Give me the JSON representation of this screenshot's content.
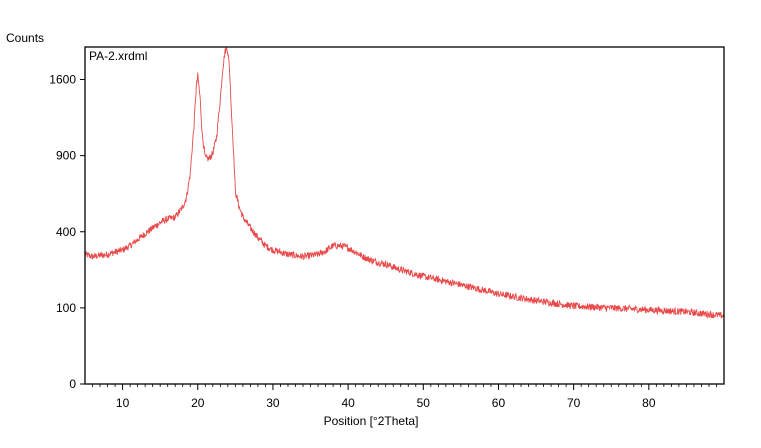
{
  "chart_data": {
    "type": "line",
    "title": "",
    "xlabel": "Position [°2Theta]",
    "ylabel": "Counts",
    "xlim": [
      5,
      90
    ],
    "y_scale": "sqrt",
    "ylim": [
      0,
      1960
    ],
    "x_ticks": [
      10,
      20,
      30,
      40,
      50,
      60,
      70,
      80
    ],
    "y_ticks": [
      0,
      100,
      400,
      900,
      1600
    ],
    "grid": false,
    "legend_position": "top-left",
    "line_color": "#e84a4a",
    "series": [
      {
        "name": "PA-2.xrdml",
        "x": [
          5,
          6,
          7,
          8,
          9,
          10,
          11,
          12,
          13,
          14,
          15,
          16,
          17,
          18,
          18.5,
          19,
          19.5,
          19.8,
          20,
          20.3,
          20.6,
          21,
          21.5,
          22,
          22.5,
          23,
          23.3,
          23.6,
          23.9,
          24.2,
          24.5,
          25,
          25.5,
          26,
          27,
          28,
          29,
          30,
          32,
          34,
          35,
          36,
          37,
          38,
          39,
          40,
          41,
          42,
          43,
          44,
          45,
          47,
          50,
          55,
          60,
          65,
          70,
          75,
          80,
          85,
          90
        ],
        "y": [
          290,
          280,
          285,
          290,
          300,
          310,
          330,
          360,
          390,
          420,
          450,
          470,
          480,
          540,
          600,
          760,
          1150,
          1520,
          1640,
          1420,
          1070,
          880,
          875,
          920,
          1050,
          1400,
          1700,
          1900,
          1960,
          1750,
          1250,
          640,
          540,
          480,
          420,
          370,
          330,
          310,
          290,
          280,
          285,
          290,
          305,
          330,
          330,
          320,
          300,
          280,
          265,
          255,
          248,
          225,
          200,
          170,
          140,
          120,
          105,
          100,
          95,
          90,
          80
        ]
      }
    ]
  }
}
